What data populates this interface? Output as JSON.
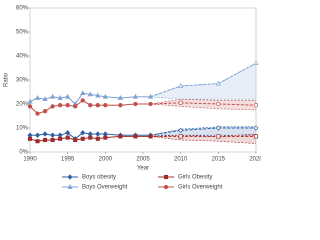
{
  "chart_data": {
    "type": "line",
    "x_label": "Year",
    "y_label": "Ratio",
    "x": [
      1990,
      1991,
      1992,
      1993,
      1994,
      1995,
      1996,
      1997,
      1998,
      1999,
      2000,
      2002,
      2004,
      2006,
      2010,
      2015,
      2020
    ],
    "projection_from": 2006,
    "xlim": [
      1990,
      2020
    ],
    "xticks": [
      1990,
      1995,
      2000,
      2005,
      2010,
      2015,
      2020
    ],
    "ylim": [
      0,
      60
    ],
    "yticks": [
      {
        "value": 0,
        "label": "0%"
      },
      {
        "value": 10,
        "label": "10%"
      },
      {
        "value": 20,
        "label": "20%"
      },
      {
        "value": 30,
        "label": "30%"
      },
      {
        "value": 40,
        "label": "40%"
      },
      {
        "value": 50,
        "label": "50%"
      },
      {
        "value": 60,
        "label": "60%"
      }
    ],
    "series": [
      {
        "name": "Boys obesity",
        "color": "#2e5fa3",
        "marker": "diamond",
        "values": [
          7,
          7,
          7.5,
          7,
          7,
          8,
          5.5,
          8,
          7.5,
          7.5,
          7.5,
          7,
          7,
          7,
          9,
          10,
          10
        ],
        "band_high": [
          null,
          null,
          null,
          null,
          null,
          null,
          null,
          null,
          null,
          null,
          null,
          null,
          null,
          7,
          9.5,
          10.5,
          10.5
        ],
        "band_low": [
          null,
          null,
          null,
          null,
          null,
          null,
          null,
          null,
          null,
          null,
          null,
          null,
          null,
          7,
          7,
          7,
          7
        ]
      },
      {
        "name": "Girls Obesity",
        "color": "#a02b2b",
        "marker": "square",
        "values": [
          5.5,
          4.5,
          5,
          5,
          5.5,
          6,
          5,
          5.5,
          6,
          5.5,
          6,
          6.5,
          6.5,
          6.5,
          6.5,
          6.5,
          6.5
        ],
        "band_high": [
          null,
          null,
          null,
          null,
          null,
          null,
          null,
          null,
          null,
          null,
          null,
          null,
          null,
          6.5,
          7,
          6.5,
          7.5
        ],
        "band_low": [
          null,
          null,
          null,
          null,
          null,
          null,
          null,
          null,
          null,
          null,
          null,
          null,
          null,
          6.5,
          5,
          4.5,
          3.5
        ]
      },
      {
        "name": "Boys Overweight",
        "color": "#7ea1d4",
        "marker": "triangle",
        "values": [
          21,
          22.5,
          22,
          23,
          22.5,
          23,
          20,
          24.5,
          24,
          23.5,
          23,
          22.5,
          23,
          23,
          27.5,
          28.5,
          37
        ],
        "band_high": [
          null,
          null,
          null,
          null,
          null,
          null,
          null,
          null,
          null,
          null,
          null,
          null,
          null,
          23,
          27.5,
          28.5,
          37
        ],
        "band_low": [
          null,
          null,
          null,
          null,
          null,
          null,
          null,
          null,
          null,
          null,
          null,
          null,
          null,
          23,
          22,
          22,
          22
        ]
      },
      {
        "name": "Girls Overweight",
        "color": "#c0504d",
        "marker": "circle",
        "values": [
          19,
          16,
          17,
          19,
          19.5,
          19.5,
          19,
          21.5,
          19.5,
          19.5,
          19.5,
          19.5,
          20,
          20,
          20.5,
          20,
          19.5
        ],
        "band_high": [
          null,
          null,
          null,
          null,
          null,
          null,
          null,
          null,
          null,
          null,
          null,
          null,
          null,
          20,
          22,
          21.5,
          21.5
        ],
        "band_low": [
          null,
          null,
          null,
          null,
          null,
          null,
          null,
          null,
          null,
          null,
          null,
          null,
          null,
          20,
          19,
          18,
          17.5
        ]
      }
    ]
  }
}
